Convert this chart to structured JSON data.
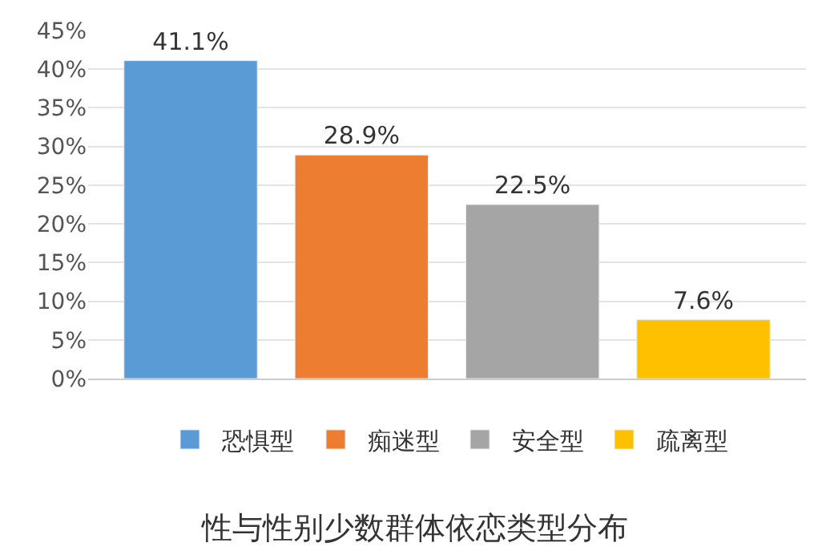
{
  "chart_data": {
    "type": "bar",
    "title": "性与性别少数群体依恋类型分布",
    "categories": [
      null,
      null,
      null,
      null
    ],
    "series": [
      {
        "name": "恐惧型",
        "color": "#5b9bd5",
        "values": [
          41.1,
          null,
          null,
          null
        ],
        "value_labels": [
          "41.1%",
          null,
          null,
          null
        ]
      },
      {
        "name": "痴迷型",
        "color": "#ed7d31",
        "values": [
          null,
          28.9,
          null,
          null
        ],
        "value_labels": [
          null,
          "28.9%",
          null,
          null
        ]
      },
      {
        "name": "安全型",
        "color": "#a5a5a5",
        "values": [
          null,
          null,
          22.5,
          null
        ],
        "value_labels": [
          null,
          null,
          "22.5%",
          null
        ]
      },
      {
        "name": "疏离型",
        "color": "#ffc000",
        "values": [
          null,
          null,
          null,
          7.6
        ],
        "value_labels": [
          null,
          null,
          null,
          "7.6%"
        ]
      }
    ],
    "ylim": [
      0,
      45
    ],
    "yticks": [
      {
        "value": 0,
        "label": "0%"
      },
      {
        "value": 5,
        "label": "5%"
      },
      {
        "value": 10,
        "label": "10%"
      },
      {
        "value": 15,
        "label": "15%"
      },
      {
        "value": 20,
        "label": "20%"
      },
      {
        "value": 25,
        "label": "25%"
      },
      {
        "value": 30,
        "label": "30%"
      },
      {
        "value": 35,
        "label": "35%"
      },
      {
        "value": 40,
        "label": "40%"
      },
      {
        "value": 45,
        "label": "45%"
      }
    ],
    "grid": "y",
    "legend": "bottom",
    "tick_labels": "y"
  }
}
